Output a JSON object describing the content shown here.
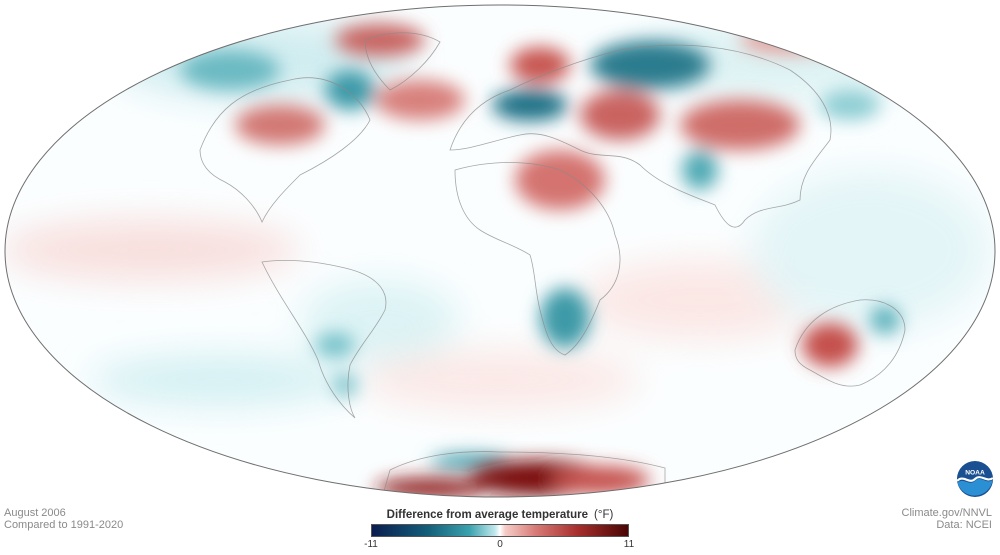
{
  "map": {
    "projection": "global equal-area oval",
    "variable": "surface temperature anomaly"
  },
  "caption_left": {
    "line1": "August 2006",
    "line2": "Compared to 1991-2020"
  },
  "caption_right": {
    "line1": "Climate.gov/NNVL",
    "line2": "Data: NCEI"
  },
  "legend": {
    "title": "Difference from average temperature",
    "unit": "(°F)",
    "min_label": "-11",
    "mid_label": "0",
    "max_label": "11",
    "colors": {
      "cold_extreme": "#0b1d4f",
      "cold": "#3aa2ae",
      "neutral": "#ffffff",
      "warm": "#d77a76",
      "warm_extreme": "#4a0505"
    }
  },
  "logo": {
    "text": "NOAA",
    "icon": "noaa-logo-icon"
  }
}
